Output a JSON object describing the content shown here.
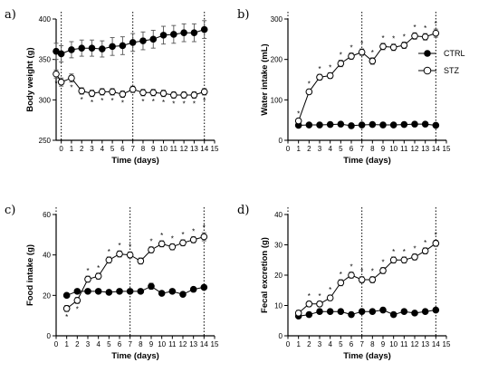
{
  "legend": {
    "items": [
      {
        "label": "CTRL",
        "marker": "filled-circle"
      },
      {
        "label": "STZ",
        "marker": "open-circle"
      }
    ]
  },
  "colors": {
    "ink": "#000000",
    "grey": "#555555",
    "open_fill": "#ffffff"
  },
  "chart_data": [
    {
      "panel": "a)",
      "type": "line",
      "xlabel": "Time (days)",
      "ylabel": "Body weight (g)",
      "ylim": [
        250,
        400
      ],
      "yticks": [
        250,
        300,
        350,
        400
      ],
      "xlim": [
        -0.5,
        15
      ],
      "xticks": [
        0,
        1,
        2,
        3,
        4,
        5,
        6,
        7,
        8,
        9,
        10,
        11,
        12,
        13,
        14,
        15
      ],
      "vlines": [
        0,
        7,
        14
      ],
      "series": [
        {
          "name": "CTRL",
          "x": [
            -0.5,
            0,
            1,
            2,
            3,
            4,
            5,
            6,
            7,
            8,
            9,
            10,
            11,
            12,
            13,
            14
          ],
          "y": [
            360,
            357,
            362,
            364,
            364,
            363,
            366,
            367,
            371,
            373,
            375,
            380,
            381,
            383,
            383,
            387
          ],
          "err": [
            10,
            10,
            10,
            10,
            10,
            10,
            11,
            11,
            11,
            11,
            11,
            11,
            11,
            11,
            11,
            11
          ]
        },
        {
          "name": "STZ",
          "x": [
            -0.5,
            0,
            1,
            2,
            3,
            4,
            5,
            6,
            7,
            8,
            9,
            10,
            11,
            12,
            13,
            14
          ],
          "y": [
            332,
            322,
            327,
            311,
            308,
            310,
            310,
            307,
            313,
            309,
            309,
            308,
            306,
            306,
            306,
            310
          ],
          "err": [
            5,
            5,
            5,
            4,
            4,
            4,
            4,
            4,
            4,
            4,
            4,
            4,
            4,
            4,
            4,
            4
          ]
        }
      ],
      "sig": {
        "x": [
          -0.5,
          1,
          2,
          3,
          4,
          5,
          6,
          8,
          9,
          10,
          11,
          12,
          13,
          14
        ],
        "label": "*",
        "pos": "below",
        "series": "STZ"
      }
    },
    {
      "panel": "b)",
      "type": "line",
      "xlabel": "Time (days)",
      "ylabel": "Water intake (mL)",
      "ylim": [
        0,
        300
      ],
      "yticks": [
        0,
        100,
        200,
        300
      ],
      "xlim": [
        0,
        15
      ],
      "xticks": [
        0,
        1,
        2,
        3,
        4,
        5,
        6,
        7,
        8,
        9,
        10,
        11,
        12,
        13,
        14,
        15
      ],
      "vlines": [
        0,
        7,
        14
      ],
      "series": [
        {
          "name": "CTRL",
          "x": [
            1,
            2,
            3,
            4,
            5,
            6,
            7,
            8,
            9,
            10,
            11,
            12,
            13,
            14
          ],
          "y": [
            37,
            38,
            38,
            39,
            40,
            36,
            38,
            39,
            38,
            38,
            39,
            40,
            40,
            37
          ],
          "err": [
            3,
            3,
            3,
            3,
            3,
            3,
            3,
            3,
            3,
            3,
            3,
            3,
            3,
            3
          ]
        },
        {
          "name": "STZ",
          "x": [
            1,
            2,
            3,
            4,
            5,
            6,
            7,
            8,
            9,
            10,
            11,
            12,
            13,
            14
          ],
          "y": [
            48,
            120,
            156,
            160,
            190,
            208,
            218,
            196,
            232,
            230,
            235,
            258,
            256,
            265
          ],
          "err": [
            5,
            6,
            7,
            7,
            8,
            8,
            8,
            8,
            8,
            8,
            8,
            8,
            8,
            10
          ]
        }
      ],
      "sig": {
        "x": [
          1,
          2,
          3,
          4,
          5,
          6,
          7,
          8,
          9,
          10,
          11,
          12,
          13,
          14
        ],
        "label": "*",
        "pos": "above",
        "series": "STZ"
      }
    },
    {
      "panel": "c)",
      "type": "line",
      "xlabel": "Time (days)",
      "ylabel": "Food intake (g)",
      "ylim": [
        0,
        60
      ],
      "yticks": [
        0,
        20,
        40,
        60
      ],
      "xlim": [
        0,
        15
      ],
      "xticks": [
        0,
        1,
        2,
        3,
        4,
        5,
        6,
        7,
        8,
        9,
        10,
        11,
        12,
        13,
        14,
        15
      ],
      "vlines": [
        0,
        7,
        14
      ],
      "series": [
        {
          "name": "CTRL",
          "x": [
            1,
            2,
            3,
            4,
            5,
            6,
            7,
            8,
            9,
            10,
            11,
            12,
            13,
            14
          ],
          "y": [
            20,
            22,
            22,
            22,
            21.5,
            22,
            22,
            22,
            24.5,
            21,
            22,
            20.5,
            23,
            24
          ],
          "err": [
            1,
            1,
            1,
            1,
            1,
            1,
            1,
            1,
            1.5,
            1,
            1,
            1,
            1,
            1
          ]
        },
        {
          "name": "STZ",
          "x": [
            1,
            2,
            3,
            4,
            5,
            6,
            7,
            8,
            9,
            10,
            11,
            12,
            13,
            14
          ],
          "y": [
            13.5,
            17.5,
            28,
            29.5,
            37.5,
            40.5,
            40,
            37,
            42.5,
            45.5,
            44,
            46,
            47.5,
            49
          ],
          "err": [
            1.5,
            1.5,
            1.5,
            1.5,
            1.5,
            1.5,
            1.5,
            1.5,
            1.5,
            1.5,
            1.5,
            1.5,
            1.5,
            2
          ]
        }
      ],
      "sig": {
        "x": [
          1,
          2,
          3,
          4,
          5,
          6,
          7,
          9,
          10,
          11,
          12,
          13,
          14
        ],
        "label": "*",
        "pos": "mixed",
        "series": "STZ"
      }
    },
    {
      "panel": "d)",
      "type": "line",
      "xlabel": "Time (days)",
      "ylabel": "Fecal excretion (g)",
      "ylim": [
        0,
        40
      ],
      "yticks": [
        0,
        10,
        20,
        30,
        40
      ],
      "xlim": [
        0,
        15
      ],
      "xticks": [
        0,
        1,
        2,
        3,
        4,
        5,
        6,
        7,
        8,
        9,
        10,
        11,
        12,
        13,
        14,
        15
      ],
      "vlines": [
        0,
        7,
        14
      ],
      "series": [
        {
          "name": "CTRL",
          "x": [
            1,
            2,
            3,
            4,
            5,
            6,
            7,
            8,
            9,
            10,
            11,
            12,
            13,
            14
          ],
          "y": [
            6.5,
            7,
            8,
            8,
            8,
            7,
            8,
            8,
            8.5,
            7,
            8,
            7.5,
            8,
            8.5
          ],
          "err": [
            0.7,
            0.7,
            0.7,
            0.7,
            0.7,
            0.7,
            0.7,
            0.7,
            0.7,
            0.7,
            0.7,
            0.7,
            0.7,
            0.7
          ]
        },
        {
          "name": "STZ",
          "x": [
            1,
            2,
            3,
            4,
            5,
            6,
            7,
            8,
            9,
            10,
            11,
            12,
            13,
            14
          ],
          "y": [
            7.5,
            10.5,
            10.5,
            12.5,
            17.5,
            20,
            18.5,
            18.5,
            21.5,
            25,
            25,
            26,
            28,
            30.5
          ],
          "err": [
            0.9,
            0.9,
            0.9,
            0.9,
            1,
            1,
            1,
            1,
            1,
            1,
            1,
            1,
            1,
            1
          ]
        }
      ],
      "sig": {
        "x": [
          2,
          3,
          4,
          5,
          6,
          7,
          8,
          9,
          10,
          11,
          12,
          13,
          14
        ],
        "label": "*",
        "pos": "above",
        "series": "STZ"
      }
    }
  ]
}
